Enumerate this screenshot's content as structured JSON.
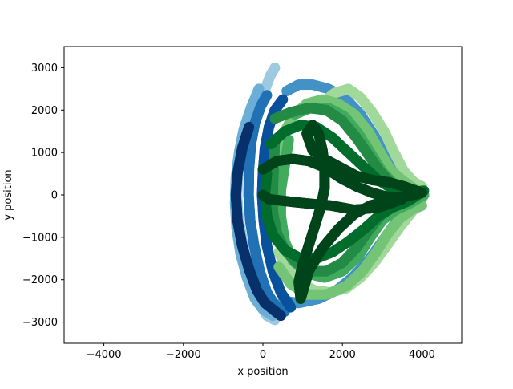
{
  "chart_data": {
    "type": "scatter",
    "title": "",
    "xlabel": "x position",
    "ylabel": "y position",
    "xlim": [
      -5000,
      5000
    ],
    "ylim": [
      -3500,
      3500
    ],
    "xticks": [
      -4000,
      -2000,
      0,
      2000,
      4000
    ],
    "yticks": [
      -3000,
      -2000,
      -1000,
      0,
      1000,
      2000,
      3000
    ],
    "xtick_labels": [
      "−4000",
      "−2000",
      "0",
      "2000",
      "4000"
    ],
    "ytick_labels": [
      "−3000",
      "−2000",
      "−1000",
      "0",
      "1000",
      "2000",
      "3000"
    ],
    "grid": false,
    "legend": "none",
    "series": [
      {
        "color": "#9ecae1",
        "points": [
          [
            300,
            3000
          ],
          [
            180,
            2800
          ],
          [
            60,
            2500
          ],
          [
            -80,
            2150
          ],
          [
            -240,
            1800
          ],
          [
            -380,
            1400
          ],
          [
            -520,
            950
          ],
          [
            -620,
            450
          ],
          [
            -650,
            0
          ],
          [
            -620,
            -500
          ],
          [
            -520,
            -1050
          ],
          [
            -380,
            -1600
          ],
          [
            -240,
            -2150
          ],
          [
            -80,
            -2550
          ],
          [
            100,
            -2850
          ],
          [
            300,
            -2950
          ]
        ]
      },
      {
        "color": "#6baed6",
        "points": [
          [
            -100,
            2500
          ],
          [
            -300,
            2050
          ],
          [
            -480,
            1550
          ],
          [
            -600,
            1000
          ],
          [
            -680,
            400
          ],
          [
            -700,
            -200
          ],
          [
            -660,
            -800
          ],
          [
            -560,
            -1400
          ],
          [
            -400,
            -1950
          ],
          [
            -200,
            -2450
          ],
          [
            0,
            -2700
          ],
          [
            250,
            -2850
          ]
        ]
      },
      {
        "color": "#4292c6",
        "points": [
          [
            600,
            2450
          ],
          [
            900,
            2600
          ],
          [
            1250,
            2600
          ],
          [
            1650,
            2500
          ],
          [
            2050,
            2300
          ],
          [
            2450,
            1900
          ],
          [
            2800,
            1400
          ],
          [
            3100,
            900
          ],
          [
            3400,
            500
          ],
          [
            3650,
            250
          ],
          [
            3900,
            150
          ],
          [
            4050,
            0
          ],
          [
            3900,
            -250
          ],
          [
            3600,
            -400
          ],
          [
            3300,
            -700
          ],
          [
            3000,
            -1100
          ],
          [
            2650,
            -1550
          ],
          [
            2250,
            -1950
          ],
          [
            1850,
            -2250
          ],
          [
            1400,
            -2450
          ],
          [
            900,
            -2550
          ],
          [
            500,
            -2500
          ]
        ]
      },
      {
        "color": "#2171b5",
        "points": [
          [
            100,
            2350
          ],
          [
            -50,
            2100
          ],
          [
            -200,
            1700
          ],
          [
            -300,
            1200
          ],
          [
            -350,
            600
          ],
          [
            -360,
            0
          ],
          [
            -320,
            -600
          ],
          [
            -220,
            -1200
          ],
          [
            -80,
            -1800
          ],
          [
            100,
            -2300
          ],
          [
            300,
            -2600
          ],
          [
            550,
            -2750
          ]
        ]
      },
      {
        "color": "#08519c",
        "points": [
          [
            500,
            2250
          ],
          [
            300,
            2000
          ],
          [
            150,
            1600
          ],
          [
            50,
            1100
          ],
          [
            0,
            500
          ],
          [
            -20,
            0
          ],
          [
            20,
            -600
          ],
          [
            100,
            -1200
          ],
          [
            250,
            -1800
          ],
          [
            450,
            -2300
          ],
          [
            700,
            -2650
          ]
        ]
      },
      {
        "color": "#08306b",
        "points": [
          [
            -350,
            1600
          ],
          [
            -520,
            1100
          ],
          [
            -640,
            500
          ],
          [
            -680,
            0
          ],
          [
            -640,
            -600
          ],
          [
            -520,
            -1200
          ],
          [
            -350,
            -1750
          ],
          [
            -150,
            -2250
          ],
          [
            50,
            -2550
          ],
          [
            250,
            -2700
          ],
          [
            450,
            -2850
          ]
        ]
      },
      {
        "color": "#a1d99b",
        "points": [
          [
            1400,
            2100
          ],
          [
            1800,
            2400
          ],
          [
            2150,
            2500
          ],
          [
            2450,
            2300
          ],
          [
            2750,
            1950
          ],
          [
            3050,
            1500
          ],
          [
            3300,
            1000
          ],
          [
            3550,
            550
          ],
          [
            3800,
            300
          ],
          [
            4000,
            200
          ],
          [
            4000,
            -100
          ],
          [
            3750,
            -400
          ],
          [
            3450,
            -750
          ],
          [
            3150,
            -1150
          ],
          [
            2800,
            -1600
          ],
          [
            2450,
            -1950
          ],
          [
            2100,
            -2200
          ],
          [
            1700,
            -2300
          ],
          [
            1300,
            -2250
          ],
          [
            900,
            -2050
          ],
          [
            600,
            -1750
          ],
          [
            400,
            -1350
          ]
        ]
      },
      {
        "color": "#74c476",
        "points": [
          [
            400,
            -1700
          ],
          [
            700,
            -2100
          ],
          [
            1100,
            -2350
          ],
          [
            1600,
            -2350
          ],
          [
            2100,
            -2150
          ],
          [
            2500,
            -1800
          ],
          [
            2850,
            -1350
          ],
          [
            3150,
            -900
          ],
          [
            3450,
            -550
          ],
          [
            3750,
            -350
          ],
          [
            4000,
            -250
          ],
          [
            3800,
            150
          ],
          [
            3500,
            350
          ],
          [
            3200,
            600
          ],
          [
            2950,
            1000
          ],
          [
            2650,
            1500
          ],
          [
            2300,
            1900
          ],
          [
            1900,
            2150
          ],
          [
            1500,
            2250
          ],
          [
            1100,
            2150
          ],
          [
            750,
            1850
          ],
          [
            500,
            1400
          ],
          [
            350,
            900
          ],
          [
            300,
            400
          ],
          [
            300,
            -100
          ],
          [
            350,
            -600
          ],
          [
            400,
            -1100
          ]
        ]
      },
      {
        "color": "#41ab5d",
        "points": [
          [
            800,
            1900
          ],
          [
            1200,
            2050
          ],
          [
            1650,
            2050
          ],
          [
            2050,
            1850
          ],
          [
            2400,
            1450
          ],
          [
            2700,
            1000
          ],
          [
            3000,
            550
          ],
          [
            3350,
            200
          ],
          [
            3700,
            50
          ],
          [
            4050,
            0
          ],
          [
            3700,
            -200
          ],
          [
            3350,
            -350
          ],
          [
            3000,
            -600
          ],
          [
            2700,
            -1000
          ],
          [
            2400,
            -1450
          ],
          [
            2000,
            -1800
          ],
          [
            1550,
            -1950
          ],
          [
            1100,
            -1850
          ],
          [
            750,
            -1550
          ],
          [
            550,
            -1100
          ],
          [
            450,
            -500
          ],
          [
            450,
            100
          ],
          [
            550,
            700
          ],
          [
            650,
            1300
          ]
        ]
      },
      {
        "color": "#238b45",
        "points": [
          [
            300,
            1800
          ],
          [
            700,
            1950
          ],
          [
            1150,
            2050
          ],
          [
            1600,
            2000
          ],
          [
            2000,
            1750
          ],
          [
            2350,
            1350
          ],
          [
            2650,
            950
          ],
          [
            2950,
            550
          ],
          [
            3250,
            250
          ],
          [
            3600,
            100
          ],
          [
            4000,
            50
          ],
          [
            3650,
            -100
          ],
          [
            3300,
            -250
          ],
          [
            2950,
            -500
          ],
          [
            2650,
            -850
          ],
          [
            2350,
            -1250
          ],
          [
            2000,
            -1600
          ],
          [
            1600,
            -1800
          ],
          [
            1200,
            -1800
          ],
          [
            850,
            -1600
          ],
          [
            550,
            -1300
          ],
          [
            350,
            -900
          ],
          [
            250,
            -400
          ],
          [
            250,
            200
          ],
          [
            280,
            800
          ],
          [
            300,
            1300
          ]
        ]
      },
      {
        "color": "#006d2c",
        "points": [
          [
            200,
            1200
          ],
          [
            550,
            1500
          ],
          [
            950,
            1650
          ],
          [
            1350,
            1600
          ],
          [
            1750,
            1350
          ],
          [
            2150,
            1000
          ],
          [
            2550,
            650
          ],
          [
            2900,
            350
          ],
          [
            3250,
            150
          ],
          [
            3650,
            50
          ],
          [
            4050,
            100
          ],
          [
            3650,
            -150
          ],
          [
            3250,
            -300
          ],
          [
            2900,
            -500
          ],
          [
            2550,
            -800
          ],
          [
            2150,
            -1100
          ],
          [
            1750,
            -1350
          ],
          [
            1350,
            -1500
          ],
          [
            950,
            -1500
          ],
          [
            550,
            -1300
          ],
          [
            250,
            -950
          ],
          [
            100,
            -500
          ],
          [
            50,
            0
          ],
          [
            100,
            500
          ]
        ]
      },
      {
        "color": "#00441b",
        "points": [
          [
            0,
            600
          ],
          [
            350,
            800
          ],
          [
            750,
            850
          ],
          [
            1150,
            800
          ],
          [
            1550,
            650
          ],
          [
            1950,
            400
          ],
          [
            2350,
            200
          ],
          [
            2750,
            50
          ],
          [
            3150,
            -50
          ],
          [
            3550,
            -50
          ],
          [
            4000,
            50
          ],
          [
            3550,
            200
          ],
          [
            3150,
            300
          ],
          [
            2750,
            350
          ],
          [
            2350,
            450
          ],
          [
            1950,
            650
          ],
          [
            1550,
            850
          ],
          [
            1250,
            1050
          ],
          [
            1100,
            1450
          ],
          [
            1250,
            1650
          ],
          [
            1400,
            1450
          ],
          [
            1500,
            1050
          ],
          [
            1550,
            600
          ],
          [
            1550,
            150
          ],
          [
            1450,
            -300
          ],
          [
            1300,
            -750
          ],
          [
            1150,
            -1200
          ],
          [
            1000,
            -1650
          ],
          [
            900,
            -2050
          ],
          [
            950,
            -2450
          ],
          [
            1150,
            -1800
          ],
          [
            1500,
            -1250
          ],
          [
            1900,
            -800
          ],
          [
            2300,
            -450
          ],
          [
            2700,
            -250
          ],
          [
            3100,
            -150
          ],
          [
            3500,
            -100
          ],
          [
            2900,
            -300
          ],
          [
            2300,
            -350
          ],
          [
            1700,
            -250
          ],
          [
            1100,
            -200
          ],
          [
            600,
            -150
          ],
          [
            150,
            -100
          ],
          [
            0,
            0
          ]
        ]
      }
    ]
  }
}
